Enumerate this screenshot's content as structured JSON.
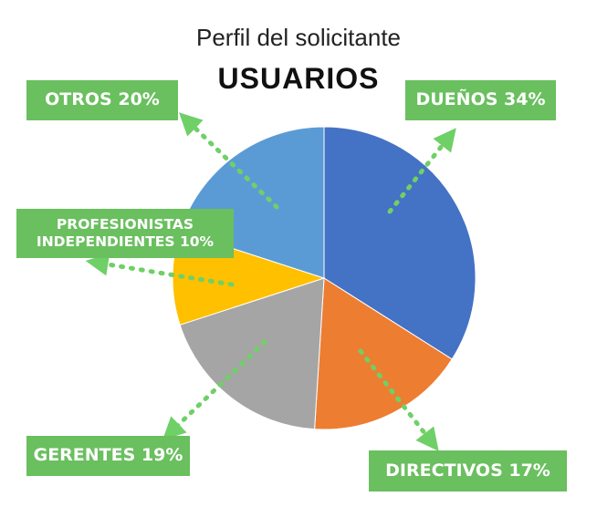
{
  "header": {
    "title": "Perfil del solicitante",
    "subtitle": "USUARIOS"
  },
  "colors": {
    "label_background": "#6abf5f",
    "arrow": "#6fd067",
    "duenos": "#4472c4",
    "directivos": "#ed7d31",
    "gerentes": "#a5a5a5",
    "profesionistas": "#ffc000",
    "otros": "#5b9bd5"
  },
  "labels": {
    "otros": "OTROS 20%",
    "duenos": "DUEÑOS 34%",
    "profesionistas_line1": "PROFESIONISTAS",
    "profesionistas_line2": "INDEPENDIENTES 10%",
    "gerentes": "GERENTES 19%",
    "directivos": "DIRECTIVOS 17%"
  },
  "chart_data": {
    "type": "pie",
    "title": "Perfil del solicitante",
    "subtitle": "USUARIOS",
    "slices": [
      {
        "name": "DUEÑOS",
        "value": 34,
        "color": "#4472c4"
      },
      {
        "name": "DIRECTIVOS",
        "value": 17,
        "color": "#ed7d31"
      },
      {
        "name": "GERENTES",
        "value": 19,
        "color": "#a5a5a5"
      },
      {
        "name": "PROFESIONISTAS INDEPENDIENTES",
        "value": 10,
        "color": "#ffc000"
      },
      {
        "name": "OTROS",
        "value": 20,
        "color": "#5b9bd5"
      }
    ],
    "legend": "none"
  }
}
